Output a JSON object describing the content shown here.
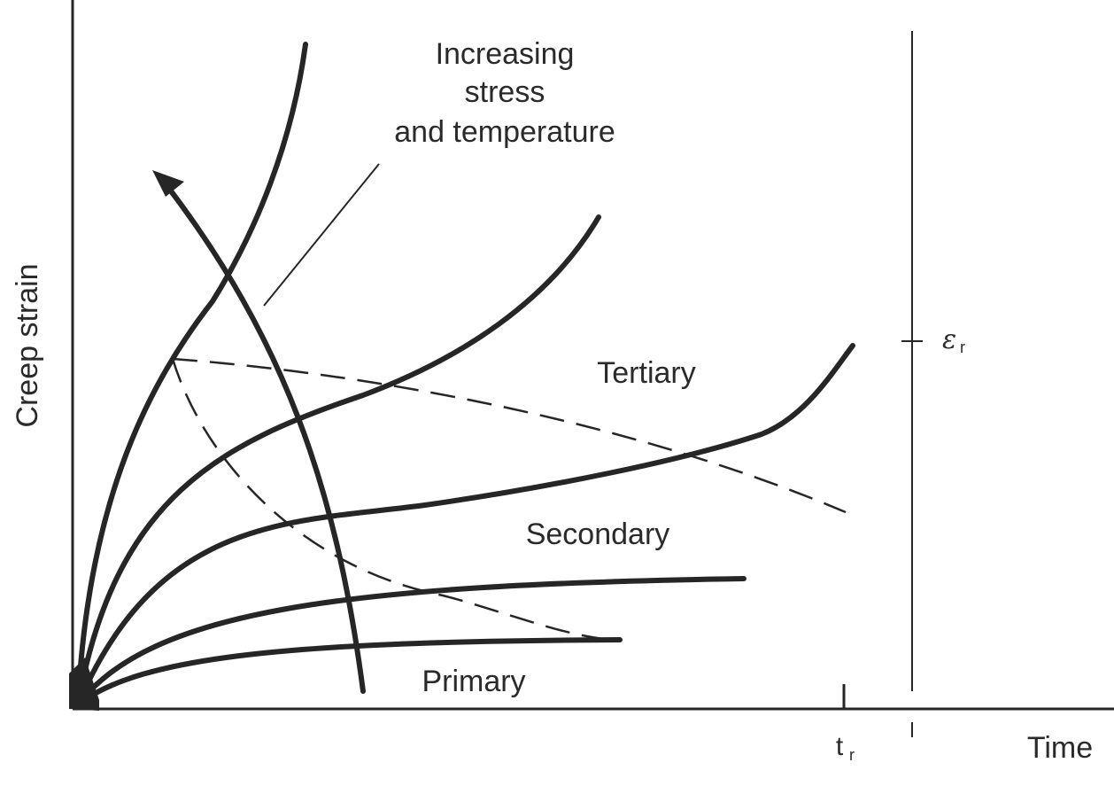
{
  "labels": {
    "annotation_line1": "Increasing",
    "annotation_line2": "stress",
    "annotation_line3": "and temperature",
    "tertiary": "Tertiary",
    "secondary": "Secondary",
    "primary": "Primary",
    "y_axis": "Creep strain",
    "x_axis": "Time",
    "rupture_time_symbol": "t",
    "rupture_time_subscript": "r",
    "rupture_strain_symbol": "ε",
    "rupture_strain_subscript": "r"
  },
  "colors": {
    "ink": "#262626",
    "background": "#ffffff"
  },
  "marks": {
    "curve_count": 5,
    "dashed_boundaries": [
      "primary-secondary",
      "secondary-tertiary"
    ],
    "arrow": "increasing-stress-and-temperature"
  }
}
